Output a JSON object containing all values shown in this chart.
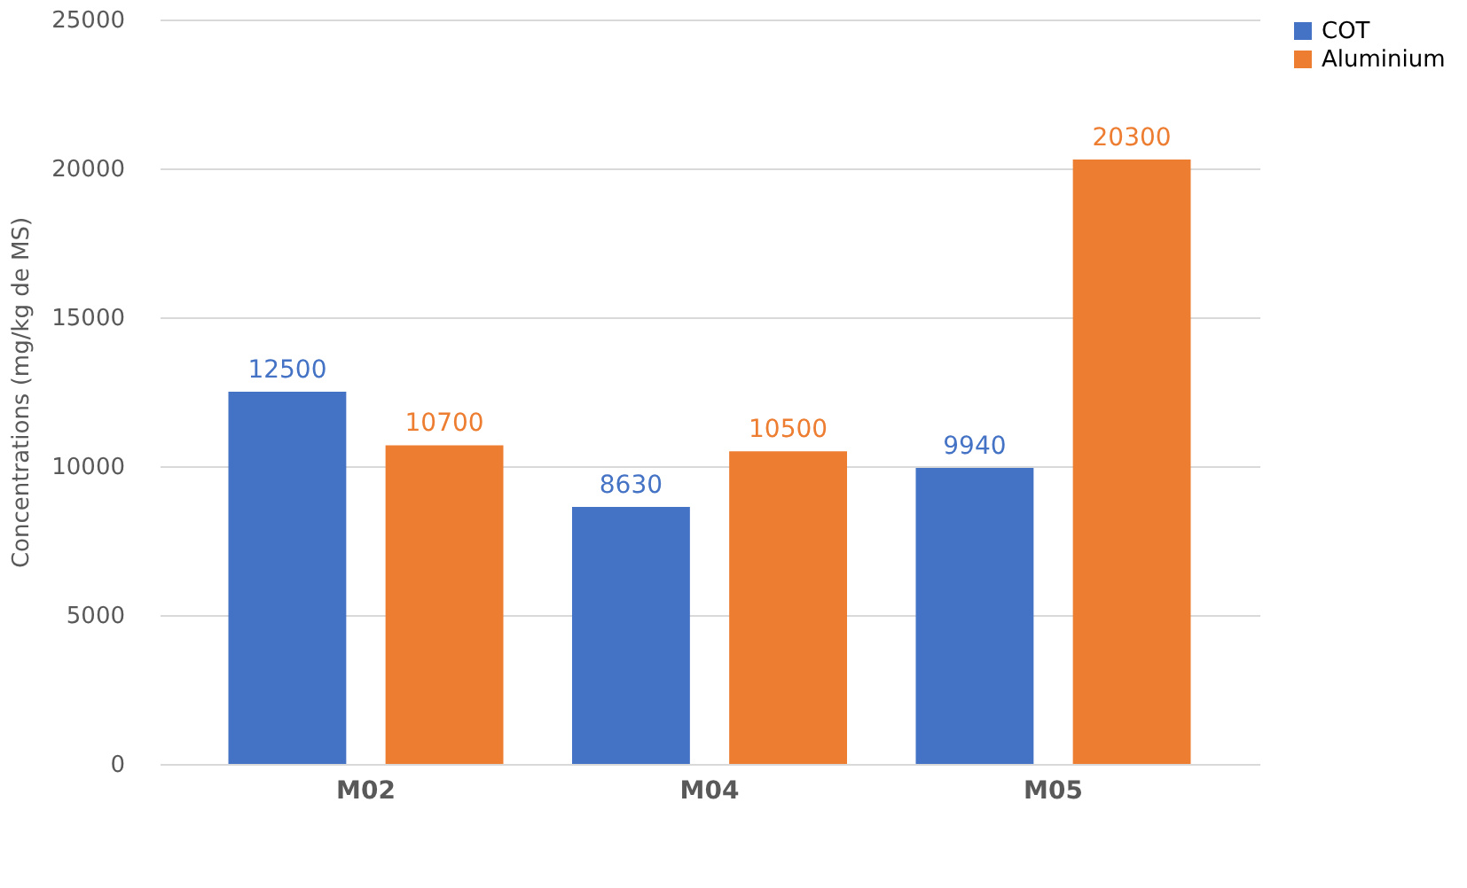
{
  "chart_data": {
    "type": "bar",
    "ylabel": "Concentrations (mg/kg de MS)",
    "categories": [
      "M02",
      "M04",
      "M05"
    ],
    "series": [
      {
        "name": "COT",
        "color": "#4472c4",
        "values": [
          12500,
          8630,
          9940
        ]
      },
      {
        "name": "Aluminium",
        "color": "#ed7d31",
        "values": [
          10700,
          10500,
          20300
        ]
      }
    ],
    "ylim": [
      0,
      25000
    ],
    "yticks": [
      0,
      5000,
      10000,
      15000,
      20000,
      25000
    ],
    "grid": "y",
    "legend": "right",
    "data_labels": true
  }
}
